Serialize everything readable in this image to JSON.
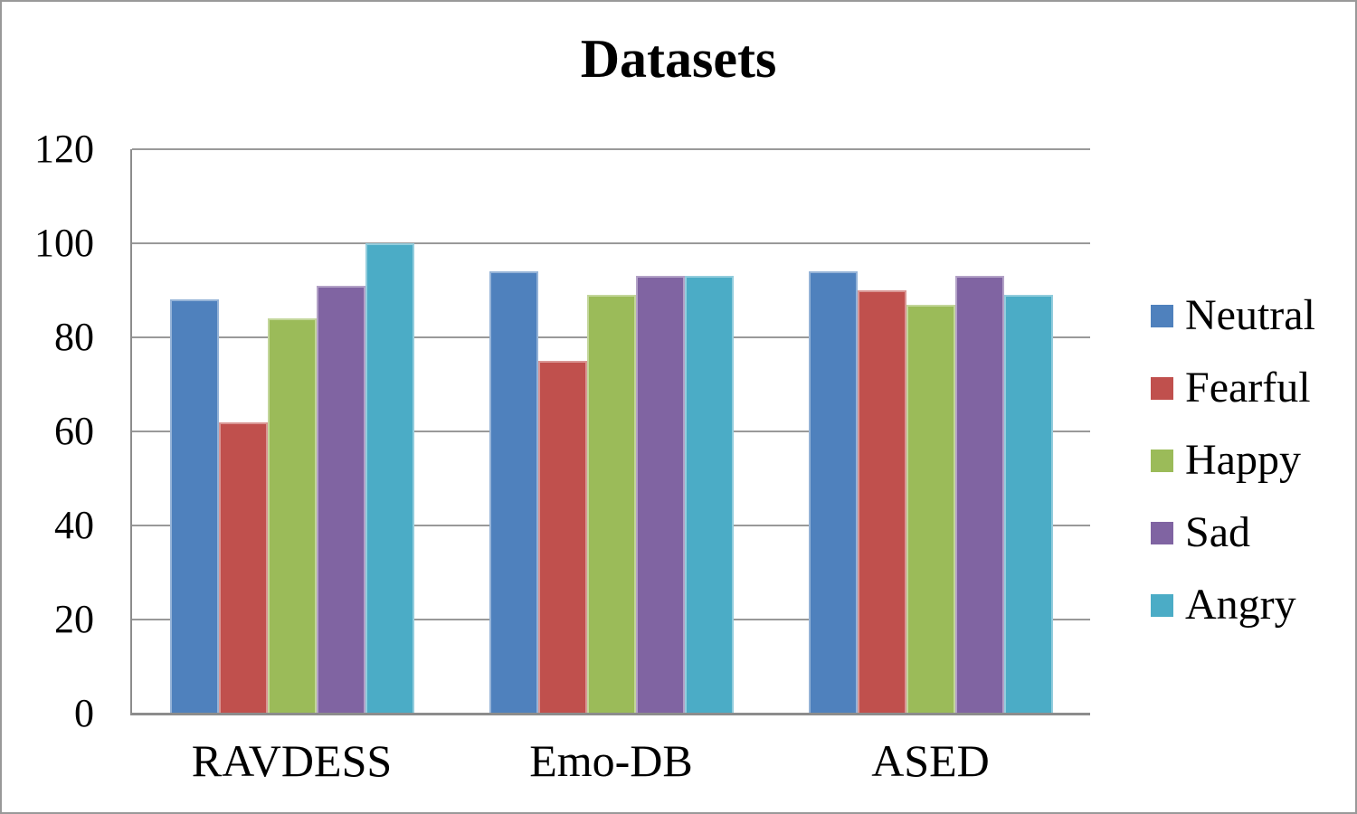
{
  "chart_data": {
    "type": "bar",
    "title": "Datasets",
    "categories": [
      "RAVDESS",
      "Emo-DB",
      "ASED"
    ],
    "series": [
      {
        "name": "Neutral",
        "color": "#4F81BD",
        "border_color": "#95B3D7",
        "values": [
          88,
          94,
          94
        ]
      },
      {
        "name": "Fearful",
        "color": "#C0504D",
        "border_color": "#D99694",
        "values": [
          62,
          75,
          90
        ]
      },
      {
        "name": "Happy",
        "color": "#9BBB59",
        "border_color": "#C3D69B",
        "values": [
          84,
          89,
          87
        ]
      },
      {
        "name": "Sad",
        "color": "#8064A2",
        "border_color": "#B3A2C7",
        "values": [
          91,
          93,
          93
        ]
      },
      {
        "name": "Angry",
        "color": "#4BACC6",
        "border_color": "#93CDDD",
        "values": [
          100,
          93,
          89
        ]
      }
    ],
    "yticks": [
      0,
      20,
      40,
      60,
      80,
      100,
      120
    ],
    "ylim": [
      0,
      120
    ],
    "xlabel": "",
    "ylabel": "",
    "grid": true,
    "legend_position": "right"
  },
  "style": {
    "background": "#FFFFFF",
    "outer_border": "#999999",
    "gridline_color": "#999999",
    "axis_line_color": "#8C8C8C",
    "text_color": "#000000"
  }
}
